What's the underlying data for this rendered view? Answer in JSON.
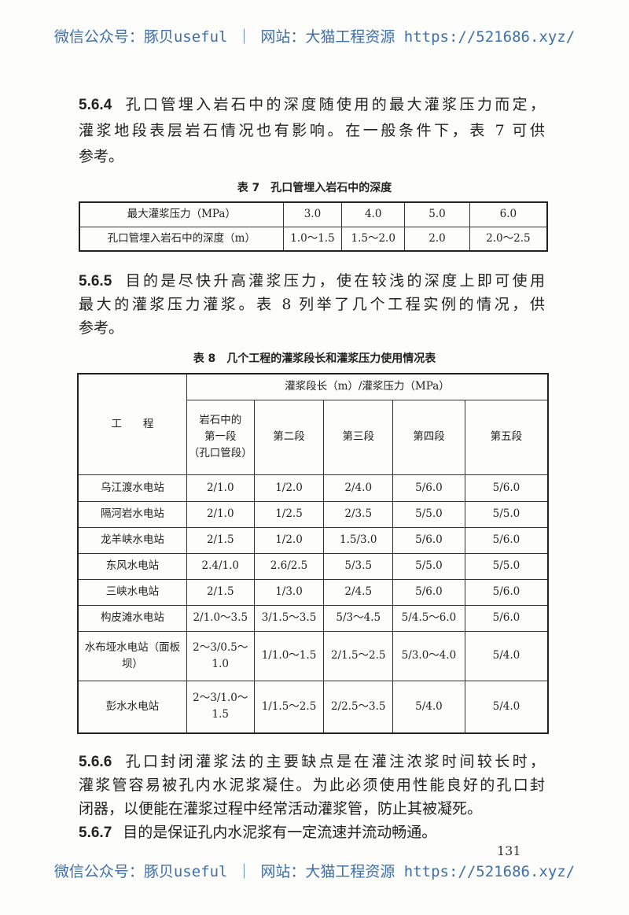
{
  "watermark": "微信公众号：豚贝useful ｜ 网站：大猫工程资源 https://521686.xyz/",
  "s564": {
    "num": "5.6.4",
    "lines": [
      "孔口管埋入岩石中的深度随使用的最大灌浆压力而定，",
      "灌浆地段表层岩石情况也有影响。在一般条件下，表 7 可供",
      "参考。"
    ]
  },
  "table7": {
    "title": "表 7　孔口管埋入岩石中的深度",
    "rows": [
      [
        "最大灌浆压力（MPa）",
        "3.0",
        "4.0",
        "5.0",
        "6.0"
      ],
      [
        "孔口管埋入岩石中的深度（m）",
        "1.0～1.5",
        "1.5～2.0",
        "2.0",
        "2.0～2.5"
      ]
    ]
  },
  "s565": {
    "num": "5.6.5",
    "lines": [
      "目的是尽快升高灌浆压力，使在较浅的深度上即可使用",
      "最大的灌浆压力灌浆。表 8 列举了几个工程实例的情况，供",
      "参考。"
    ]
  },
  "table8": {
    "title": "表 8　几个工程的灌浆段长和灌浆压力使用情况表",
    "project_header": "工　　程",
    "group_header": "灌浆段长（m）/灌浆压力（MPa）",
    "columns": [
      "岩石中的第一段（孔口管段）",
      "第二段",
      "第三段",
      "第四段",
      "第五段"
    ],
    "col1_lines": [
      "岩石中的",
      "第一段",
      "（孔口管段）"
    ],
    "rows": [
      [
        "乌江渡水电站",
        "2/1.0",
        "1/2.0",
        "2/4.0",
        "5/6.0",
        "5/6.0"
      ],
      [
        "隔河岩水电站",
        "2/1.0",
        "1/2.5",
        "2/3.5",
        "5/5.0",
        "5/5.0"
      ],
      [
        "龙羊峡水电站",
        "2/1.5",
        "1/2.0",
        "1.5/3.0",
        "5/6.0",
        "5/6.0"
      ],
      [
        "东风水电站",
        "2.4/1.0",
        "2.6/2.5",
        "5/3.5",
        "5/5.0",
        "5/5.0"
      ],
      [
        "三峡水电站",
        "2/1.5",
        "1/3.0",
        "2/4.5",
        "5/6.0",
        "5/6.0"
      ],
      [
        "构皮滩水电站",
        "2/1.0～3.5",
        "3/1.5～3.5",
        "5/3～4.5",
        "5/4.5～6.0",
        "5/6.0"
      ],
      [
        "水布垭水电站（面板坝）",
        "2～3/0.5～1.0",
        "1/1.0～1.5",
        "2/1.5～2.5",
        "5/3.0～4.0",
        "5/4.0"
      ],
      [
        "彭水水电站",
        "2～3/1.0～1.5",
        "1/1.5～2.5",
        "2/2.5～3.5",
        "5/4.0",
        "5/4.0"
      ]
    ]
  },
  "s566": {
    "num": "5.6.6",
    "lines": [
      "孔口封闭灌浆法的主要缺点是在灌注浓浆时间较长时，",
      "灌浆管容易被孔内水泥浆凝住。为此必须使用性能良好的孔口封",
      "闭器，以便能在灌浆过程中经常活动灌浆管，防止其被凝死。"
    ]
  },
  "s567": {
    "num": "5.6.7",
    "lines": [
      "目的是保证孔内水泥浆有一定流速并流动畅通。"
    ]
  },
  "page_number": "131"
}
